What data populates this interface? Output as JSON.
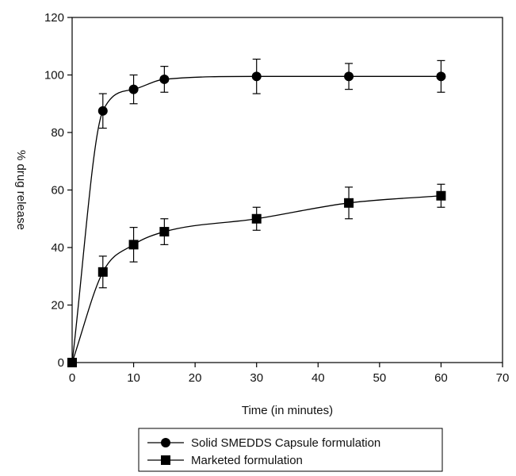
{
  "chart_data": {
    "type": "line",
    "xlabel": "Time (in minutes)",
    "ylabel": "% drug release",
    "xlim": [
      0,
      70
    ],
    "ylim": [
      0,
      120
    ],
    "x_ticks": [
      0,
      10,
      20,
      30,
      40,
      50,
      60,
      70
    ],
    "y_ticks": [
      0,
      20,
      40,
      60,
      80,
      100,
      120
    ],
    "grid": false,
    "legend_position": "bottom-center",
    "series": [
      {
        "name": "Solid SMEDDS Capsule formulation",
        "marker": "circle",
        "color": "#000000",
        "x": [
          0,
          5,
          10,
          15,
          30,
          45,
          60
        ],
        "y": [
          0,
          87.5,
          95,
          98.5,
          99.5,
          99.5,
          99.5
        ],
        "error": [
          0,
          6,
          5,
          4.5,
          6,
          4.5,
          5.5
        ]
      },
      {
        "name": "Marketed formulation",
        "marker": "square",
        "color": "#000000",
        "x": [
          0,
          5,
          10,
          15,
          30,
          45,
          60
        ],
        "y": [
          0,
          31.5,
          41,
          45.5,
          50,
          55.5,
          58
        ],
        "error": [
          0,
          5.5,
          6,
          4.5,
          4,
          5.5,
          4
        ]
      }
    ]
  }
}
